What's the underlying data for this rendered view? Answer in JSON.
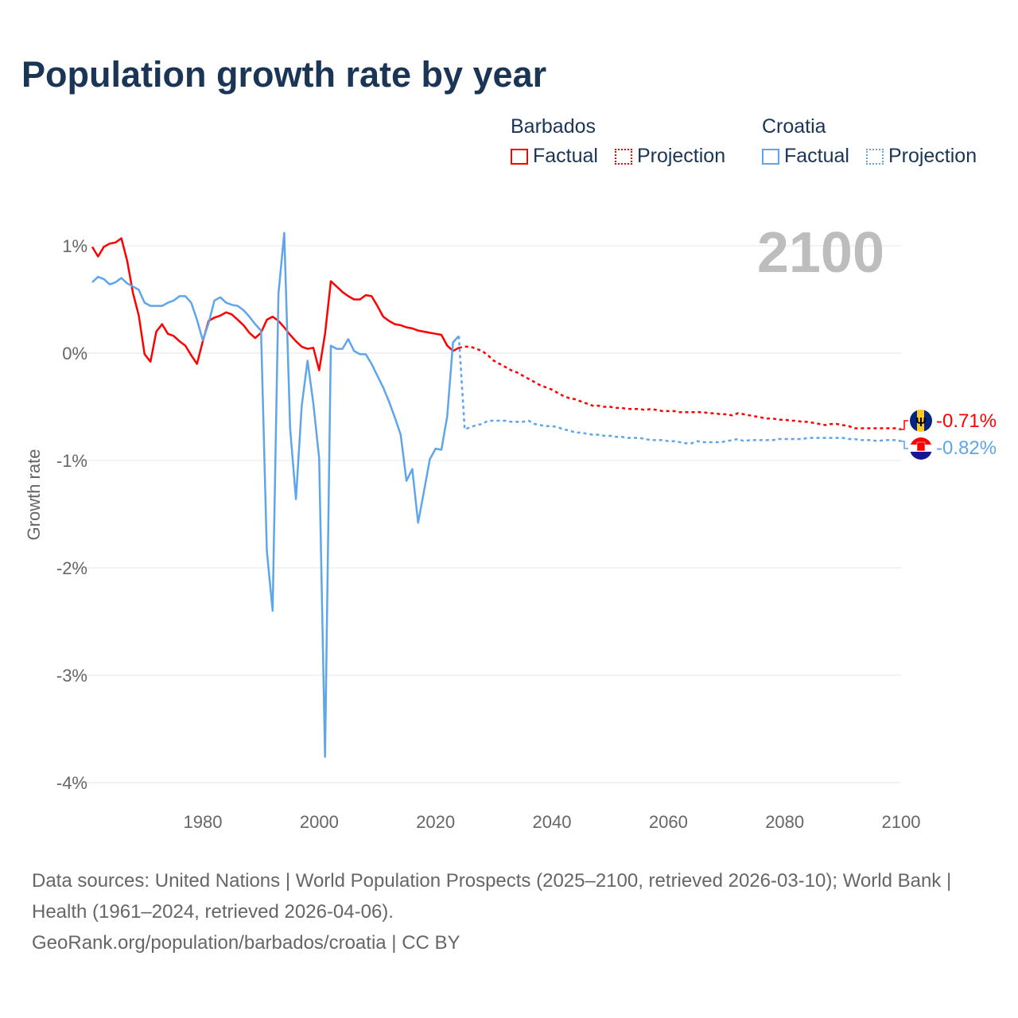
{
  "title": "Population growth rate by year",
  "legend": {
    "groups": [
      {
        "name": "Barbados",
        "factual": "Factual",
        "projection": "Projection",
        "color": "#ff0000"
      },
      {
        "name": "Croatia",
        "factual": "Factual",
        "projection": "Projection",
        "color": "#5ea5ea"
      }
    ]
  },
  "year_watermark": "2100",
  "end_labels": {
    "barbados": "-0.71%",
    "croatia": "-0.82%"
  },
  "footer": {
    "sources": "Data sources: United Nations | World Population Prospects (2025–2100, retrieved 2026-03-10); World Bank | Health (1961–2024, retrieved 2026-04-06).",
    "credit": "GeoRank.org/population/barbados/croatia | CC BY"
  },
  "chart_data": {
    "type": "line",
    "title": "Population growth rate by year",
    "xlabel": "",
    "ylabel": "Growth rate",
    "xlim": [
      1961,
      2100
    ],
    "ylim": [
      -4,
      1
    ],
    "x_ticks": [
      "1980",
      "2000",
      "2020",
      "2040",
      "2060",
      "2080",
      "2100"
    ],
    "y_ticks": [
      "1%",
      "0%",
      "-1%",
      "-2%",
      "-3%",
      "-4%"
    ],
    "grid": true,
    "legend_position": "top-right",
    "series": [
      {
        "name": "Barbados",
        "kind": "Factual",
        "start_year": 1961,
        "color": "#ff0000",
        "values": [
          0.99,
          0.9,
          0.99,
          1.02,
          1.03,
          1.07,
          0.86,
          0.56,
          0.35,
          -0.01,
          -0.08,
          0.2,
          0.27,
          0.18,
          0.16,
          0.11,
          0.07,
          -0.02,
          -0.1,
          0.11,
          0.3,
          0.33,
          0.35,
          0.38,
          0.36,
          0.31,
          0.26,
          0.19,
          0.14,
          0.19,
          0.31,
          0.34,
          0.3,
          0.24,
          0.17,
          0.11,
          0.06,
          0.04,
          0.05,
          -0.16,
          0.18,
          0.67,
          0.62,
          0.57,
          0.53,
          0.5,
          0.5,
          0.54,
          0.53,
          0.44,
          0.34,
          0.3,
          0.27,
          0.26,
          0.24,
          0.23,
          0.21,
          0.2,
          0.19,
          0.18,
          0.17,
          0.07,
          0.02,
          0.05
        ]
      },
      {
        "name": "Barbados",
        "kind": "Projection",
        "start_year": 2025,
        "color": "#ff0000",
        "values": [
          0.06,
          0.06,
          0.04,
          0.02,
          -0.02,
          -0.07,
          -0.1,
          -0.13,
          -0.16,
          -0.18,
          -0.21,
          -0.24,
          -0.27,
          -0.3,
          -0.32,
          -0.34,
          -0.37,
          -0.4,
          -0.42,
          -0.43,
          -0.45,
          -0.47,
          -0.49,
          -0.49,
          -0.5,
          -0.5,
          -0.51,
          -0.51,
          -0.52,
          -0.52,
          -0.52,
          -0.53,
          -0.52,
          -0.53,
          -0.54,
          -0.54,
          -0.54,
          -0.55,
          -0.55,
          -0.55,
          -0.55,
          -0.55,
          -0.56,
          -0.56,
          -0.57,
          -0.57,
          -0.58,
          -0.56,
          -0.57,
          -0.58,
          -0.59,
          -0.6,
          -0.61,
          -0.61,
          -0.62,
          -0.62,
          -0.63,
          -0.63,
          -0.64,
          -0.64,
          -0.65,
          -0.66,
          -0.67,
          -0.66,
          -0.66,
          -0.67,
          -0.68,
          -0.7,
          -0.7,
          -0.7,
          -0.7,
          -0.7,
          -0.7,
          -0.7,
          -0.7,
          -0.71
        ]
      },
      {
        "name": "Croatia",
        "kind": "Factual",
        "start_year": 1961,
        "color": "#5ea5ea",
        "values": [
          0.66,
          0.71,
          0.69,
          0.64,
          0.66,
          0.7,
          0.65,
          0.62,
          0.59,
          0.47,
          0.44,
          0.44,
          0.44,
          0.47,
          0.49,
          0.53,
          0.53,
          0.47,
          0.31,
          0.12,
          0.28,
          0.49,
          0.52,
          0.47,
          0.45,
          0.44,
          0.4,
          0.34,
          0.27,
          0.21,
          -1.84,
          -2.4,
          0.55,
          1.12,
          -0.7,
          -1.36,
          -0.49,
          -0.07,
          -0.47,
          -0.98,
          -3.76,
          0.07,
          0.04,
          0.04,
          0.13,
          0.02,
          -0.01,
          -0.01,
          -0.1,
          -0.21,
          -0.32,
          -0.45,
          -0.6,
          -0.76,
          -1.19,
          -1.08,
          -1.58,
          -1.29,
          -0.99,
          -0.89,
          -0.9,
          -0.59,
          0.1,
          0.16
        ]
      },
      {
        "name": "Croatia",
        "kind": "Projection",
        "start_year": 2025,
        "color": "#5ea5ea",
        "values": [
          -0.71,
          -0.69,
          -0.67,
          -0.66,
          -0.63,
          -0.63,
          -0.63,
          -0.63,
          -0.64,
          -0.64,
          -0.64,
          -0.63,
          -0.66,
          -0.67,
          -0.68,
          -0.68,
          -0.69,
          -0.71,
          -0.72,
          -0.74,
          -0.74,
          -0.75,
          -0.76,
          -0.76,
          -0.77,
          -0.77,
          -0.78,
          -0.78,
          -0.79,
          -0.79,
          -0.79,
          -0.8,
          -0.81,
          -0.81,
          -0.81,
          -0.82,
          -0.82,
          -0.83,
          -0.84,
          -0.84,
          -0.82,
          -0.83,
          -0.83,
          -0.83,
          -0.83,
          -0.82,
          -0.81,
          -0.8,
          -0.82,
          -0.81,
          -0.81,
          -0.81,
          -0.81,
          -0.81,
          -0.8,
          -0.8,
          -0.8,
          -0.8,
          -0.8,
          -0.79,
          -0.79,
          -0.79,
          -0.79,
          -0.79,
          -0.79,
          -0.79,
          -0.8,
          -0.8,
          -0.81,
          -0.81,
          -0.81,
          -0.82,
          -0.81,
          -0.81,
          -0.81,
          -0.82
        ]
      }
    ]
  }
}
